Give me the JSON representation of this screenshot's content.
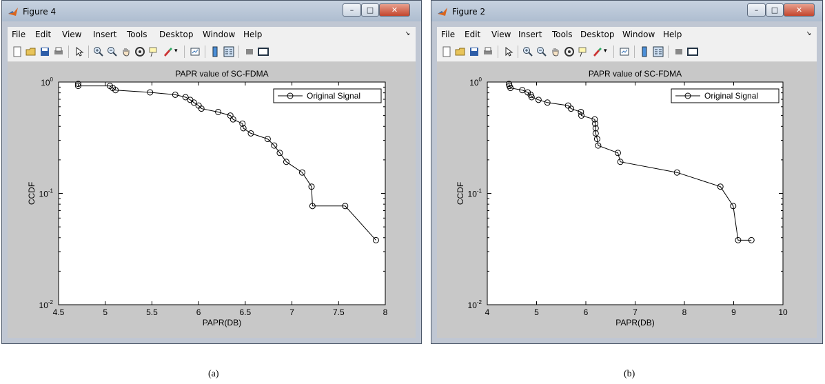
{
  "figures": [
    {
      "window_title": "Figure 4",
      "menu": [
        "File",
        "Edit",
        "View",
        "Insert",
        "Tools",
        "Desktop",
        "Window",
        "Help"
      ],
      "caption": "(a)"
    },
    {
      "window_title": "Figure 2",
      "menu": [
        "File",
        "Edit",
        "View",
        "Insert",
        "Tools",
        "Desktop",
        "Window",
        "Help"
      ],
      "caption": "(b)"
    }
  ],
  "chart_data": [
    {
      "type": "line",
      "title": "PAPR value of SC-FDMA",
      "xlabel": "PAPR(DB)",
      "ylabel": "CCDF",
      "xlim": [
        4.5,
        8
      ],
      "ylim": [
        0.01,
        1
      ],
      "yscale": "log",
      "xticks": [
        "4.5",
        "5",
        "5.5",
        "6",
        "6.5",
        "7",
        "7.5",
        "8"
      ],
      "legend_position": "top-right",
      "marker": "circle",
      "series": [
        {
          "name": "Original Signal",
          "x": [
            4.71,
            4.71,
            5.05,
            5.08,
            5.11,
            5.48,
            5.75,
            5.86,
            5.91,
            5.95,
            6.0,
            6.03,
            6.21,
            6.34,
            6.37,
            6.47,
            6.48,
            6.56,
            6.74,
            6.81,
            6.87,
            6.94,
            7.11,
            7.21,
            7.22,
            7.57,
            7.9
          ],
          "y": [
            0.962,
            0.923,
            0.923,
            0.885,
            0.846,
            0.808,
            0.769,
            0.731,
            0.692,
            0.654,
            0.615,
            0.577,
            0.538,
            0.5,
            0.462,
            0.423,
            0.385,
            0.346,
            0.308,
            0.269,
            0.231,
            0.192,
            0.154,
            0.115,
            0.077,
            0.077,
            0.038
          ]
        }
      ]
    },
    {
      "type": "line",
      "title": "PAPR value of SC-FDMA",
      "xlabel": "PAPR(DB)",
      "ylabel": "CCDF",
      "xlim": [
        4,
        10
      ],
      "ylim": [
        0.01,
        1
      ],
      "yscale": "log",
      "xticks": [
        "4",
        "5",
        "6",
        "7",
        "8",
        "9",
        "10"
      ],
      "legend_position": "top-right",
      "marker": "circle",
      "series": [
        {
          "name": "Original Signal",
          "x": [
            4.44,
            4.45,
            4.47,
            4.71,
            4.82,
            4.88,
            4.9,
            5.04,
            5.22,
            5.64,
            5.7,
            5.9,
            5.91,
            6.18,
            6.19,
            6.2,
            6.2,
            6.23,
            6.25,
            6.65,
            6.7,
            7.85,
            8.73,
            8.99,
            9.09,
            9.36
          ],
          "y": [
            0.962,
            0.923,
            0.885,
            0.846,
            0.808,
            0.769,
            0.731,
            0.692,
            0.654,
            0.615,
            0.577,
            0.538,
            0.5,
            0.462,
            0.423,
            0.385,
            0.346,
            0.308,
            0.269,
            0.231,
            0.192,
            0.154,
            0.115,
            0.077,
            0.038,
            0.038
          ]
        }
      ]
    }
  ]
}
